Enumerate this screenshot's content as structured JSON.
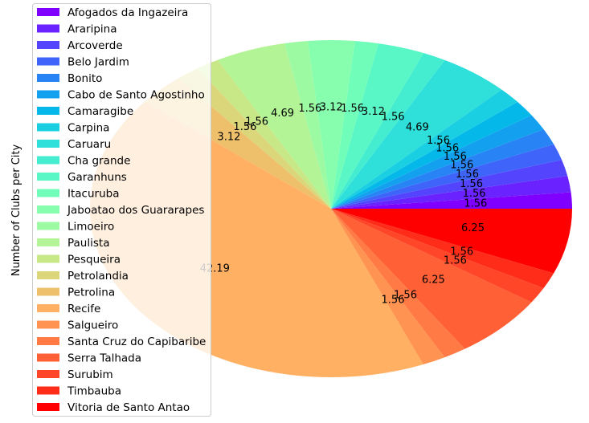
{
  "chart_data": {
    "type": "pie",
    "ylabel": "Number of Clubs per City",
    "legend_placement": "upper-left",
    "slices": [
      {
        "label": "Afogados da Ingazeira",
        "value": 1.56,
        "color": "#8000ff"
      },
      {
        "label": "Araripina",
        "value": 1.56,
        "color": "#6a22fe"
      },
      {
        "label": "Arcoverde",
        "value": 1.56,
        "color": "#5444fd"
      },
      {
        "label": "Belo Jardim",
        "value": 1.56,
        "color": "#3e64f9"
      },
      {
        "label": "Bonito",
        "value": 1.56,
        "color": "#2884f5"
      },
      {
        "label": "Cabo de Santo Agostinho",
        "value": 1.56,
        "color": "#12a0ef"
      },
      {
        "label": "Camaragibe",
        "value": 1.56,
        "color": "#04b9ea"
      },
      {
        "label": "Carpina",
        "value": 1.56,
        "color": "#1acfe2"
      },
      {
        "label": "Caruaru",
        "value": 4.69,
        "color": "#2edfda"
      },
      {
        "label": "Cha grande",
        "value": 1.56,
        "color": "#44edd0"
      },
      {
        "label": "Garanhuns",
        "value": 3.12,
        "color": "#5af7c6"
      },
      {
        "label": "Itacuruba",
        "value": 1.56,
        "color": "#70fdba"
      },
      {
        "label": "Jaboatao dos Guararapes",
        "value": 3.12,
        "color": "#86feae"
      },
      {
        "label": "Limoeiro",
        "value": 1.56,
        "color": "#9cfba2"
      },
      {
        "label": "Paulista",
        "value": 4.69,
        "color": "#b2f496"
      },
      {
        "label": "Pesqueira",
        "value": 1.56,
        "color": "#c8e888"
      },
      {
        "label": "Petrolandia",
        "value": 1.56,
        "color": "#dcd67a"
      },
      {
        "label": "Petrolina",
        "value": 3.12,
        "color": "#eec06c"
      },
      {
        "label": "Recife",
        "value": 42.19,
        "color": "#ffb062"
      },
      {
        "label": "Salgueiro",
        "value": 1.56,
        "color": "#ff9452"
      },
      {
        "label": "Santa Cruz do Capibaribe",
        "value": 1.56,
        "color": "#ff7a44"
      },
      {
        "label": "Serra Talhada",
        "value": 6.25,
        "color": "#ff6036"
      },
      {
        "label": "Surubim",
        "value": 1.56,
        "color": "#ff4628"
      },
      {
        "label": "Timbauba",
        "value": 1.56,
        "color": "#ff2c1a"
      },
      {
        "label": "Vitoria de Santo Antao",
        "value": 6.25,
        "color": "#ff0000"
      }
    ]
  }
}
